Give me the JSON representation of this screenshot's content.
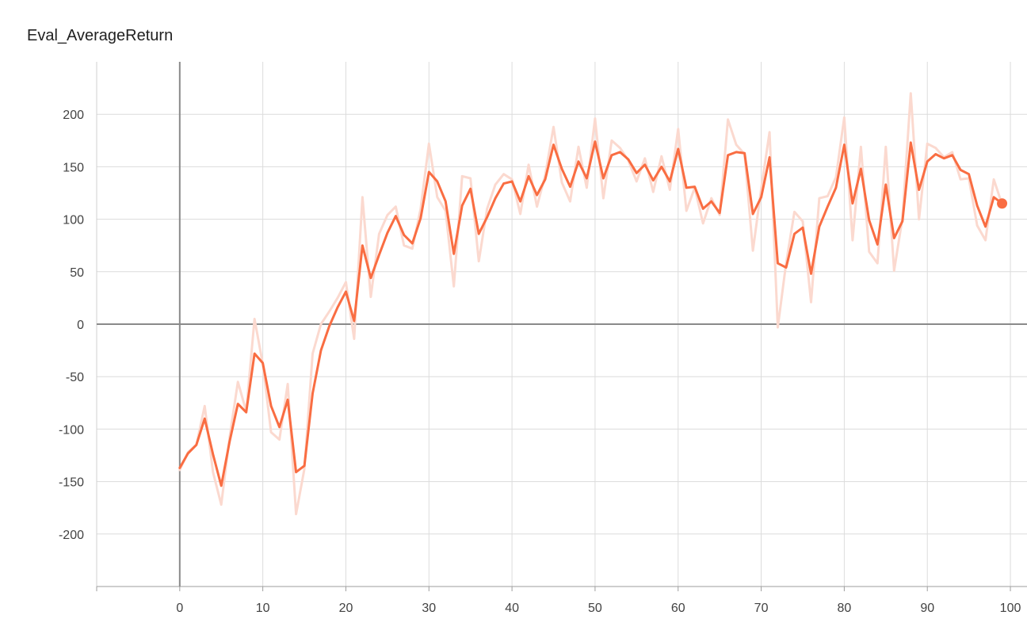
{
  "chart_data": {
    "type": "line",
    "title": "Eval_AverageReturn",
    "xlabel": "",
    "ylabel": "",
    "xlim": [
      -10,
      102
    ],
    "ylim": [
      -250,
      250
    ],
    "xticks": [
      0,
      10,
      20,
      30,
      40,
      50,
      60,
      70,
      80,
      90,
      100
    ],
    "yticks": [
      -200,
      -150,
      -100,
      -50,
      0,
      50,
      100,
      150,
      200
    ],
    "xtick_labels": [
      "0",
      "10",
      "20",
      "30",
      "40",
      "50",
      "60",
      "70",
      "80",
      "90",
      "100"
    ],
    "ytick_labels": [
      "-200",
      "-150",
      "-100",
      "-50",
      "0",
      "50",
      "100",
      "150",
      "200"
    ],
    "grid": true,
    "series": [
      {
        "name": "raw",
        "color": "#fbd9cf",
        "x": [
          0,
          1,
          2,
          3,
          4,
          5,
          6,
          7,
          8,
          9,
          10,
          11,
          12,
          13,
          14,
          15,
          16,
          17,
          18,
          19,
          20,
          21,
          22,
          23,
          24,
          25,
          26,
          27,
          28,
          29,
          30,
          31,
          32,
          33,
          34,
          35,
          36,
          37,
          38,
          39,
          40,
          41,
          42,
          43,
          44,
          45,
          46,
          47,
          48,
          49,
          50,
          51,
          52,
          53,
          54,
          55,
          56,
          57,
          58,
          59,
          60,
          61,
          62,
          63,
          64,
          65,
          66,
          67,
          68,
          69,
          70,
          71,
          72,
          73,
          74,
          75,
          76,
          77,
          78,
          79,
          80,
          81,
          82,
          83,
          84,
          85,
          86,
          87,
          88,
          89,
          90,
          91,
          92,
          93,
          94,
          95,
          96,
          97,
          98,
          99
        ],
        "values": [
          -139,
          -122,
          -115,
          -78,
          -141,
          -172,
          -108,
          -55,
          -83,
          5,
          -38,
          -103,
          -110,
          -57,
          -181,
          -138,
          -28,
          0,
          12,
          25,
          40,
          -14,
          121,
          26,
          86,
          104,
          112,
          75,
          72,
          110,
          172,
          121,
          108,
          36,
          141,
          139,
          60,
          110,
          133,
          143,
          138,
          105,
          152,
          112,
          142,
          188,
          135,
          117,
          169,
          130,
          196,
          120,
          175,
          168,
          156,
          136,
          158,
          126,
          160,
          128,
          186,
          108,
          130,
          96,
          120,
          104,
          195,
          171,
          162,
          70,
          129,
          183,
          -3,
          58,
          107,
          98,
          21,
          120,
          122,
          140,
          197,
          80,
          169,
          69,
          58,
          169,
          51,
          101,
          220,
          100,
          172,
          168,
          159,
          164,
          138,
          139,
          94,
          80,
          138,
          114
        ]
      },
      {
        "name": "smoothed",
        "color": "#f96d42",
        "x": [
          0,
          1,
          2,
          3,
          4,
          5,
          6,
          7,
          8,
          9,
          10,
          11,
          12,
          13,
          14,
          15,
          16,
          17,
          18,
          19,
          20,
          21,
          22,
          23,
          24,
          25,
          26,
          27,
          28,
          29,
          30,
          31,
          32,
          33,
          34,
          35,
          36,
          37,
          38,
          39,
          40,
          41,
          42,
          43,
          44,
          45,
          46,
          47,
          48,
          49,
          50,
          51,
          52,
          53,
          54,
          55,
          56,
          57,
          58,
          59,
          60,
          61,
          62,
          63,
          64,
          65,
          66,
          67,
          68,
          69,
          70,
          71,
          72,
          73,
          74,
          75,
          76,
          77,
          78,
          79,
          80,
          81,
          82,
          83,
          84,
          85,
          86,
          87,
          88,
          89,
          90,
          91,
          92,
          93,
          94,
          95,
          96,
          97,
          98,
          99
        ],
        "values": [
          -137,
          -123,
          -115,
          -90,
          -124,
          -154,
          -112,
          -76,
          -84,
          -28,
          -37,
          -78,
          -98,
          -72,
          -141,
          -135,
          -66,
          -25,
          -2,
          16,
          31,
          3,
          75,
          44,
          66,
          87,
          103,
          85,
          77,
          101,
          145,
          136,
          117,
          67,
          113,
          129,
          86,
          102,
          120,
          134,
          136,
          117,
          141,
          123,
          138,
          171,
          148,
          131,
          155,
          139,
          174,
          139,
          161,
          164,
          157,
          144,
          152,
          137,
          150,
          136,
          167,
          130,
          131,
          110,
          117,
          106,
          161,
          164,
          163,
          105,
          121,
          159,
          58,
          54,
          86,
          92,
          48,
          93,
          112,
          130,
          171,
          115,
          148,
          99,
          76,
          133,
          82,
          98,
          173,
          128,
          155,
          162,
          158,
          161,
          147,
          143,
          113,
          93,
          121,
          115
        ]
      }
    ]
  }
}
